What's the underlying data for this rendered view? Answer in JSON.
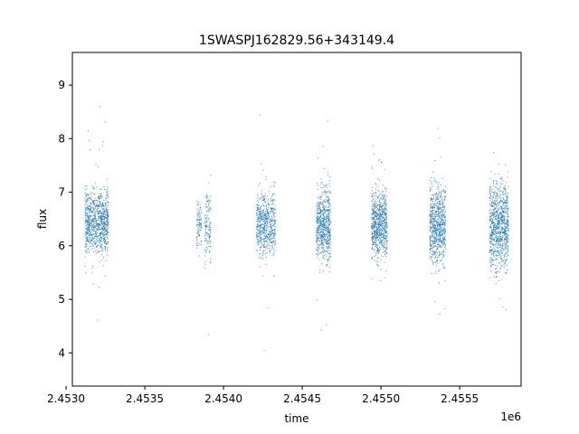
{
  "chart_data": {
    "type": "scatter",
    "title": "1SWASPJ162829.56+343149.4",
    "xlabel": "time",
    "ylabel": "flux",
    "x_offset_label": "1e6",
    "xlim": [
      2.45304,
      2.45589
    ],
    "ylim": [
      3.38,
      9.61
    ],
    "x_ticks": [
      2.453,
      2.4535,
      2.454,
      2.4545,
      2.455,
      2.4555
    ],
    "x_tick_labels": [
      "2.4530",
      "2.4535",
      "2.4540",
      "2.4545",
      "2.4550",
      "2.4555"
    ],
    "y_ticks": [
      4,
      5,
      6,
      7,
      8,
      9
    ],
    "y_tick_labels": [
      "4",
      "5",
      "6",
      "7",
      "8",
      "9"
    ],
    "grid": false,
    "marker_color": "#1f77b4",
    "series": [
      {
        "clusters": [
          {
            "x_start": 2.45312,
            "x_end": 2.45327,
            "y_min": 5.6,
            "y_max": 7.4,
            "y_mean": 6.45,
            "density": 900
          },
          {
            "x_start": 2.45383,
            "x_end": 2.45386,
            "y_min": 5.6,
            "y_max": 7.0,
            "y_mean": 6.4,
            "density": 90
          },
          {
            "x_start": 2.45388,
            "x_end": 2.45392,
            "y_min": 5.5,
            "y_max": 7.5,
            "y_mean": 6.4,
            "density": 130
          },
          {
            "x_start": 2.45421,
            "x_end": 2.45433,
            "y_min": 5.5,
            "y_max": 7.3,
            "y_mean": 6.4,
            "density": 600
          },
          {
            "x_start": 2.45459,
            "x_end": 2.45468,
            "y_min": 5.3,
            "y_max": 7.4,
            "y_mean": 6.4,
            "density": 650
          },
          {
            "x_start": 2.45494,
            "x_end": 2.45504,
            "y_min": 5.5,
            "y_max": 7.4,
            "y_mean": 6.4,
            "density": 750
          },
          {
            "x_start": 2.45531,
            "x_end": 2.45541,
            "y_min": 5.3,
            "y_max": 7.5,
            "y_mean": 6.4,
            "density": 750
          },
          {
            "x_start": 2.45569,
            "x_end": 2.45581,
            "y_min": 5.0,
            "y_max": 7.6,
            "y_mean": 6.4,
            "density": 900
          }
        ]
      }
    ]
  }
}
